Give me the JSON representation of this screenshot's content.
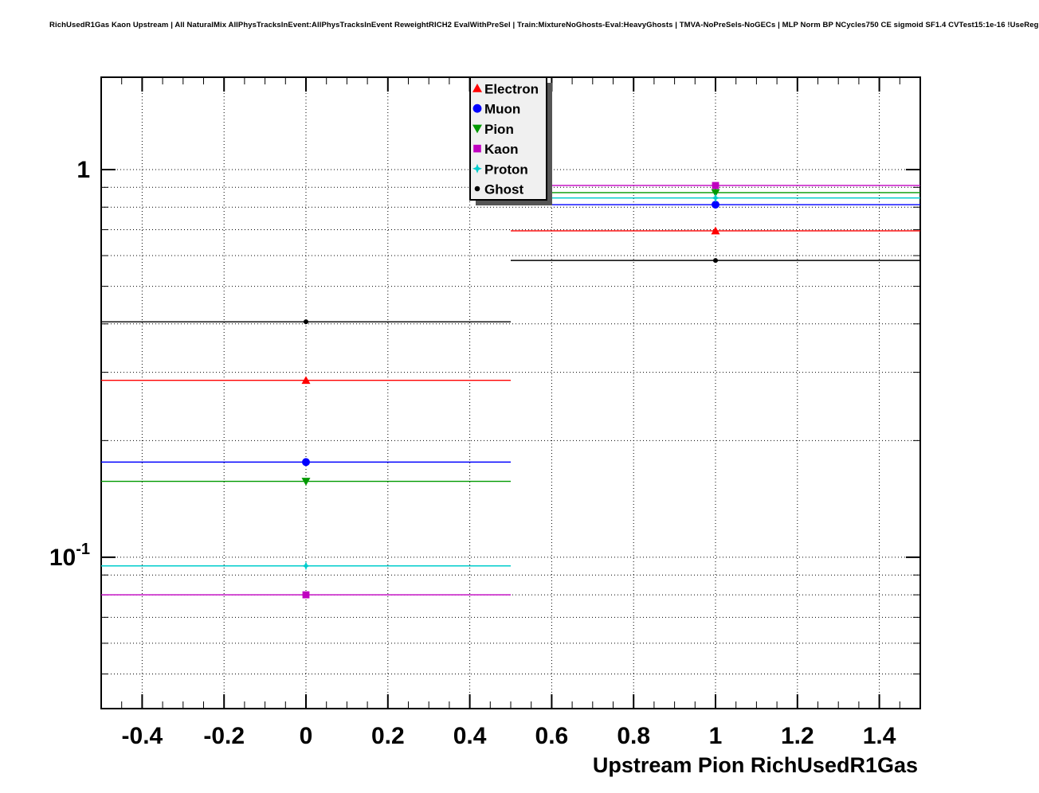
{
  "header": {
    "title": "RichUsedR1Gas Kaon Upstream | All NaturalMix AllPhysTracksInEvent:AllPhysTracksInEvent ReweightRICH2 EvalWithPreSel | Train:MixtureNoGhosts-Eval:HeavyGhosts | TMVA-NoPreSels-NoGECs | MLP Norm BP NCycles750 CE sigmoid SF1.4 CVTest15:1e-16 !UseReg"
  },
  "chart_data": {
    "type": "scatter",
    "title": "RichUsedR1Gas Kaon Upstream | All NaturalMix AllPhysTracksInEvent:AllPhysTracksInEvent ReweightRICH2 EvalWithPreSel | Train:MixtureNoGhosts-Eval:HeavyGhosts | TMVA-NoPreSels-NoGECs | MLP Norm BP NCycles750 CE sigmoid SF1.4 CVTest15:1e-16 !UseReg",
    "xlabel": "Upstream Pion RichUsedR1Gas",
    "ylabel": "",
    "x_scale": "linear",
    "y_scale": "log",
    "xlim": [
      -0.5,
      1.5
    ],
    "ylim": [
      0.0407,
      1.731
    ],
    "x_major_ticks": [
      -0.4,
      -0.2,
      0,
      0.2,
      0.4,
      0.6,
      0.8,
      1,
      1.2,
      1.4
    ],
    "x_tick_labels": [
      "-0.4",
      "-0.2",
      "0",
      "0.2",
      "0.4",
      "0.6",
      "0.8",
      "1",
      "1.2",
      "1.4"
    ],
    "x_minor_step": 0.05,
    "y_major_ticks": [
      1,
      0.1
    ],
    "y_major_labels": [
      {
        "text": "1",
        "sup": ""
      },
      {
        "text": "10",
        "sup": "-1"
      }
    ],
    "grid": true,
    "bin_half_width": 0.5,
    "legend": {
      "position": "top-center",
      "fill": "#f0f0f0",
      "border": "#000000",
      "shadow": "#555555",
      "entries": [
        "Electron",
        "Muon",
        "Pion",
        "Kaon",
        "Proton",
        "Ghost"
      ]
    },
    "series": [
      {
        "name": "Electron",
        "color": "#ff0000",
        "marker": "triangle-up",
        "x": [
          0,
          1
        ],
        "y": [
          0.286,
          0.695
        ]
      },
      {
        "name": "Muon",
        "color": "#0000ff",
        "marker": "circle",
        "x": [
          0,
          1
        ],
        "y": [
          0.176,
          0.812
        ]
      },
      {
        "name": "Pion",
        "color": "#009900",
        "marker": "triangle-down",
        "x": [
          0,
          1
        ],
        "y": [
          0.157,
          0.872
        ]
      },
      {
        "name": "Kaon",
        "color": "#c000c0",
        "marker": "square",
        "x": [
          0,
          1
        ],
        "y": [
          0.08,
          0.91
        ]
      },
      {
        "name": "Proton",
        "color": "#00cccc",
        "marker": "star",
        "x": [
          0,
          1
        ],
        "y": [
          0.095,
          0.845
        ]
      },
      {
        "name": "Ghost",
        "color": "#000000",
        "marker": "dot",
        "x": [
          0,
          1
        ],
        "y": [
          0.405,
          0.583
        ]
      }
    ]
  }
}
